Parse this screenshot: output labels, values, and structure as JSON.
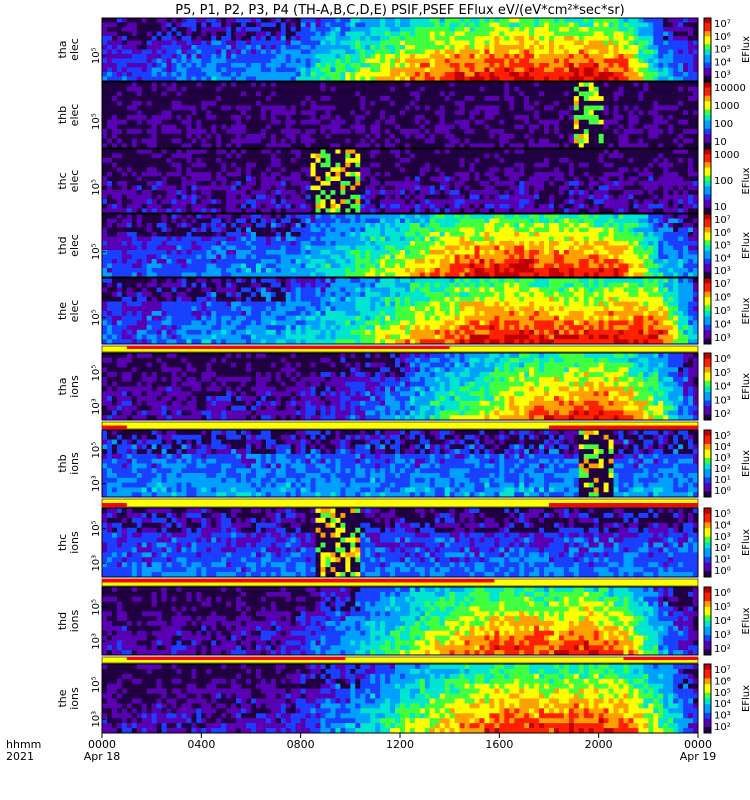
{
  "title": "P5, P1, P2, P3, P4 (TH-A,B,C,D,E) PSIF,PSEF EFlux eV/(eV*cm²*sec*sr)",
  "chart_data": {
    "type": "heatmap",
    "xaxis": {
      "row_labels": [
        "hhmm",
        "2021"
      ],
      "ticks": [
        "0000",
        "0400",
        "0800",
        "1200",
        "1600",
        "2000",
        "0000"
      ],
      "tick_values_hours": [
        0,
        4,
        8,
        12,
        16,
        20,
        24
      ],
      "dates": [
        "Apr 18",
        "Apr 19"
      ],
      "range_hours": [
        0,
        24
      ]
    },
    "panels": [
      {
        "probe": "tha",
        "species": "elec",
        "label": [
          "tha",
          "elec"
        ],
        "ytick_labels": [
          "10⁵"
        ],
        "colorbar": {
          "scale": "log",
          "ticks": [
            "10³",
            "10⁴",
            "10⁵",
            "10⁶",
            "10⁷"
          ],
          "label": "EFlux"
        },
        "activity": [
          0.25,
          0.2,
          0.3,
          0.35,
          0.3,
          0.35,
          0.5,
          0.6,
          0.75,
          0.85,
          0.9,
          0.95,
          0.9,
          0.95,
          0.9,
          0.4,
          0.2
        ],
        "gaps": []
      },
      {
        "probe": "thb",
        "species": "elec",
        "label": [
          "thb",
          "elec"
        ],
        "ytick_labels": [
          "10⁵"
        ],
        "colorbar": {
          "scale": "log",
          "ticks": [
            "10",
            "100",
            "1000",
            "10000"
          ],
          "label": ""
        },
        "activity": [
          0.1,
          0.1,
          0.1,
          0.1,
          0.1,
          0.1,
          0.1,
          0.1,
          0.1,
          0.1,
          0.1,
          0.1,
          0.1,
          0.1,
          0.1,
          0.1,
          0.1
        ],
        "gaps": [
          [
            19.0,
            20.2
          ]
        ]
      },
      {
        "probe": "thc",
        "species": "elec",
        "label": [
          "thc",
          "elec"
        ],
        "ytick_labels": [
          "10⁵"
        ],
        "colorbar": {
          "scale": "log",
          "ticks": [
            "10",
            "100",
            "1000"
          ],
          "label": "EFlux"
        },
        "activity": [
          0.15,
          0.15,
          0.15,
          0.15,
          0.15,
          0.15,
          0.15,
          0.15,
          0.15,
          0.15,
          0.15,
          0.15,
          0.15,
          0.15,
          0.15,
          0.15,
          0.15
        ],
        "gaps": [
          [
            8.4,
            10.4
          ]
        ]
      },
      {
        "probe": "thd",
        "species": "elec",
        "label": [
          "thd",
          "elec"
        ],
        "ytick_labels": [
          "10⁵"
        ],
        "colorbar": {
          "scale": "log",
          "ticks": [
            "10³",
            "10⁴",
            "10⁵",
            "10⁶",
            "10⁷"
          ],
          "label": "EFlux"
        },
        "activity": [
          0.3,
          0.25,
          0.3,
          0.3,
          0.35,
          0.35,
          0.45,
          0.55,
          0.65,
          0.8,
          0.9,
          0.95,
          0.9,
          0.9,
          0.85,
          0.45,
          0.3
        ],
        "gaps": []
      },
      {
        "probe": "the",
        "species": "elec",
        "label": [
          "the",
          "elec"
        ],
        "ytick_labels": [
          "10⁵"
        ],
        "colorbar": {
          "scale": "log",
          "ticks": [
            "10³",
            "10⁴",
            "10⁵",
            "10⁶",
            "10⁷"
          ],
          "label": "EFlux"
        },
        "activity": [
          0.3,
          0.25,
          0.3,
          0.35,
          0.35,
          0.4,
          0.45,
          0.55,
          0.7,
          0.8,
          0.9,
          0.95,
          0.9,
          0.9,
          0.95,
          0.9,
          0.3
        ],
        "gaps": []
      },
      {
        "probe": "tha",
        "species": "ions",
        "label": [
          "tha",
          "ions"
        ],
        "ytick_labels": [
          "10⁵",
          "10³"
        ],
        "colorbar": {
          "scale": "log",
          "ticks": [
            "10²",
            "10³",
            "10⁴",
            "10⁵",
            "10⁶"
          ],
          "label": "EFlux"
        },
        "activity": [
          0.15,
          0.15,
          0.15,
          0.15,
          0.15,
          0.15,
          0.2,
          0.25,
          0.35,
          0.5,
          0.6,
          0.75,
          0.85,
          0.9,
          0.85,
          0.6,
          0.2
        ],
        "gaps": []
      },
      {
        "probe": "thb",
        "species": "ions",
        "label": [
          "thb",
          "ions"
        ],
        "ytick_labels": [
          "10⁵",
          "10³"
        ],
        "colorbar": {
          "scale": "log",
          "ticks": [
            "10⁰",
            "10¹",
            "10²",
            "10³",
            "10⁴",
            "10⁵"
          ],
          "label": "EFlux"
        },
        "activity": [
          0.35,
          0.35,
          0.35,
          0.35,
          0.35,
          0.35,
          0.35,
          0.35,
          0.35,
          0.35,
          0.35,
          0.35,
          0.35,
          0.35,
          0.35,
          0.35,
          0.35
        ],
        "gaps": [
          [
            19.2,
            20.6
          ]
        ]
      },
      {
        "probe": "thc",
        "species": "ions",
        "label": [
          "thc",
          "ions"
        ],
        "ytick_labels": [
          "10⁵",
          "10³"
        ],
        "colorbar": {
          "scale": "log",
          "ticks": [
            "10⁰",
            "10¹",
            "10²",
            "10³",
            "10⁴",
            "10⁵"
          ],
          "label": "EFlux"
        },
        "activity": [
          0.3,
          0.3,
          0.3,
          0.3,
          0.3,
          0.3,
          0.3,
          0.3,
          0.3,
          0.3,
          0.3,
          0.3,
          0.3,
          0.3,
          0.3,
          0.3,
          0.3
        ],
        "gaps": [
          [
            8.6,
            10.4
          ]
        ]
      },
      {
        "probe": "thd",
        "species": "ions",
        "label": [
          "thd",
          "ions"
        ],
        "ytick_labels": [
          "10⁵",
          "10³"
        ],
        "colorbar": {
          "scale": "log",
          "ticks": [
            "10²",
            "10³",
            "10⁴",
            "10⁵",
            "10⁶"
          ],
          "label": "EFlux"
        },
        "activity": [
          0.15,
          0.15,
          0.15,
          0.15,
          0.15,
          0.2,
          0.3,
          0.4,
          0.55,
          0.7,
          0.8,
          0.9,
          0.85,
          0.9,
          0.8,
          0.4,
          0.15
        ],
        "gaps": []
      },
      {
        "probe": "the",
        "species": "ions",
        "label": [
          "the",
          "ions"
        ],
        "ytick_labels": [
          "10⁵",
          "10³"
        ],
        "colorbar": {
          "scale": "log",
          "ticks": [
            "10²",
            "10³",
            "10⁴",
            "10⁵",
            "10⁶",
            "10⁷"
          ],
          "label": "EFlux"
        },
        "activity": [
          0.15,
          0.15,
          0.15,
          0.15,
          0.15,
          0.2,
          0.3,
          0.4,
          0.55,
          0.7,
          0.8,
          0.9,
          0.85,
          0.9,
          0.85,
          0.6,
          0.2
        ],
        "gaps": []
      }
    ],
    "mode_bars": [
      {
        "after_panel": 4,
        "top_red_hours": [
          [
            1.0,
            14.0
          ]
        ],
        "bottom_red_hours": []
      },
      {
        "after_panel": 5,
        "top_red_hours": [],
        "bottom_red_hours": [
          [
            0,
            1.0
          ],
          [
            18.0,
            24.0
          ]
        ]
      },
      {
        "after_panel": 6,
        "top_red_hours": [],
        "bottom_red_hours": [
          [
            0,
            1.0
          ],
          [
            18.0,
            24.0
          ]
        ]
      },
      {
        "after_panel": 7,
        "top_red_hours": [
          [
            0,
            15.8
          ]
        ],
        "bottom_red_hours": []
      },
      {
        "after_panel": 8,
        "top_red_hours": [
          [
            1.0,
            9.8
          ],
          [
            21.0,
            24.0
          ]
        ],
        "bottom_red_hours": []
      }
    ]
  },
  "colors": {
    "spectrum": [
      "#200040",
      "#5a00b4",
      "#1a40ff",
      "#00a0ff",
      "#00e5d0",
      "#40ff40",
      "#ffff00",
      "#ffa000",
      "#ff2000",
      "#c00000"
    ],
    "mode_yellow": "#ffff00",
    "mode_red": "#ff0000"
  }
}
